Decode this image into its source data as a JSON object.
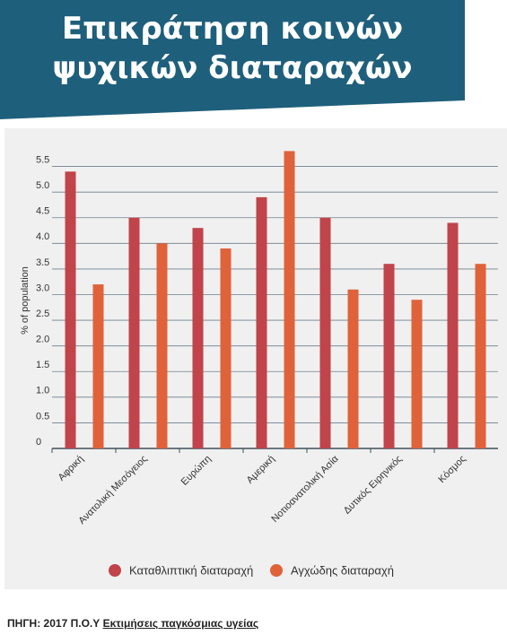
{
  "chart_data": {
    "type": "bar",
    "title": "Επικράτηση κοινών ψυχικών διαταραχών",
    "y_label": "% of population",
    "categories": [
      "Αφρική",
      "Ανατολική Μεσόγειος",
      "Ευρώπη",
      "Αμερική",
      "Νοτιοανατολική Ασία",
      "Δυτικός Ειρηνικός",
      "Κόσμος"
    ],
    "series": [
      {
        "name": "Καταθλιπτική διαταραχή",
        "color": "#c0444a",
        "values": [
          5.4,
          4.5,
          4.3,
          4.9,
          4.5,
          3.6,
          4.4
        ]
      },
      {
        "name": "Αγχώδης διαταραχή",
        "color": "#e0623a",
        "values": [
          3.2,
          4.0,
          3.9,
          5.8,
          3.1,
          2.9,
          3.6
        ]
      }
    ],
    "ylim": [
      0,
      6
    ],
    "yticks": [
      0,
      0.5,
      {
        "value": 1,
        "label": "1.0"
      },
      1.5,
      {
        "value": 2,
        "label": "2.0"
      },
      2.5,
      {
        "value": 3,
        "label": "3.0"
      },
      3.5,
      {
        "value": 4,
        "label": "4.0"
      },
      4.5,
      {
        "value": 5,
        "label": "5.0"
      },
      5.5
    ],
    "grid": true,
    "legend": "bottom"
  },
  "footer": {
    "source": "ΠΗΓΗ: 2017 Π.Ο.Υ",
    "link": "Εκτιμήσεις παγκόσμιας υγείας"
  }
}
